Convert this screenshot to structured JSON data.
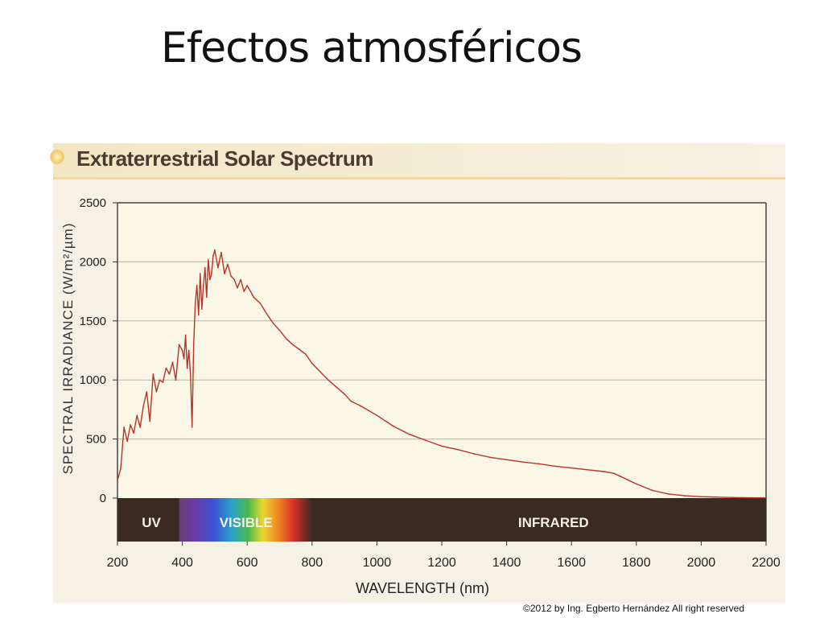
{
  "slide": {
    "title": "Efectos atmosféricos",
    "copyright": "©2012 by Ing. Egberto Hernández All right reserved"
  },
  "colors": {
    "plot_bg": "#fbf7e6",
    "line": "#b8332a",
    "band_bg": "#3a2a22",
    "grid": "#b9b4aa"
  },
  "chart_data": {
    "type": "line",
    "title": "Extraterrestrial Solar Spectrum",
    "xlabel": "WAVELENGTH (nm)",
    "ylabel": "SPECTRAL IRRADIANCE (W/m²/µm)",
    "xlim": [
      200,
      2200
    ],
    "ylim": [
      0,
      2500
    ],
    "xticks": [
      "200",
      "400",
      "600",
      "800",
      "1000",
      "1200",
      "1400",
      "1600",
      "1800",
      "2000",
      "2200"
    ],
    "yticks": [
      "0",
      "500",
      "1000",
      "1500",
      "2000",
      "2500"
    ],
    "grid": true,
    "bands": [
      {
        "name": "UV",
        "from": 200,
        "to": 400
      },
      {
        "name": "VISIBLE",
        "from": 400,
        "to": 800
      },
      {
        "name": "INFRARED",
        "from": 800,
        "to": 2200
      }
    ],
    "series": [
      {
        "name": "Extraterrestrial solar spectrum",
        "x": [
          200,
          210,
          220,
          230,
          240,
          250,
          260,
          270,
          280,
          290,
          300,
          310,
          320,
          330,
          340,
          350,
          360,
          370,
          380,
          390,
          400,
          405,
          410,
          415,
          420,
          425,
          430,
          435,
          440,
          445,
          450,
          455,
          460,
          465,
          470,
          475,
          480,
          485,
          490,
          495,
          500,
          510,
          520,
          530,
          540,
          550,
          560,
          570,
          580,
          590,
          600,
          620,
          640,
          660,
          680,
          700,
          720,
          740,
          760,
          780,
          800,
          850,
          900,
          920,
          950,
          1000,
          1050,
          1100,
          1150,
          1200,
          1250,
          1300,
          1350,
          1400,
          1450,
          1500,
          1550,
          1600,
          1650,
          1700,
          1730,
          1750,
          1800,
          1850,
          1900,
          1950,
          2000,
          2050,
          2100,
          2150,
          2200
        ],
        "values": [
          150,
          250,
          600,
          480,
          620,
          550,
          700,
          600,
          780,
          900,
          650,
          1050,
          900,
          1000,
          980,
          1100,
          1050,
          1150,
          1000,
          1300,
          1250,
          1180,
          1380,
          1100,
          1250,
          1050,
          600,
          1300,
          1650,
          1800,
          1550,
          1900,
          1600,
          1800,
          1950,
          1700,
          2020,
          1850,
          1900,
          2050,
          2100,
          1950,
          2080,
          1900,
          1980,
          1880,
          1850,
          1780,
          1850,
          1750,
          1800,
          1700,
          1650,
          1560,
          1480,
          1420,
          1350,
          1300,
          1260,
          1220,
          1140,
          1000,
          880,
          820,
          780,
          700,
          610,
          540,
          490,
          440,
          410,
          375,
          345,
          325,
          305,
          290,
          270,
          255,
          240,
          225,
          210,
          185,
          120,
          65,
          35,
          20,
          12,
          8,
          5,
          3,
          2
        ]
      }
    ]
  }
}
